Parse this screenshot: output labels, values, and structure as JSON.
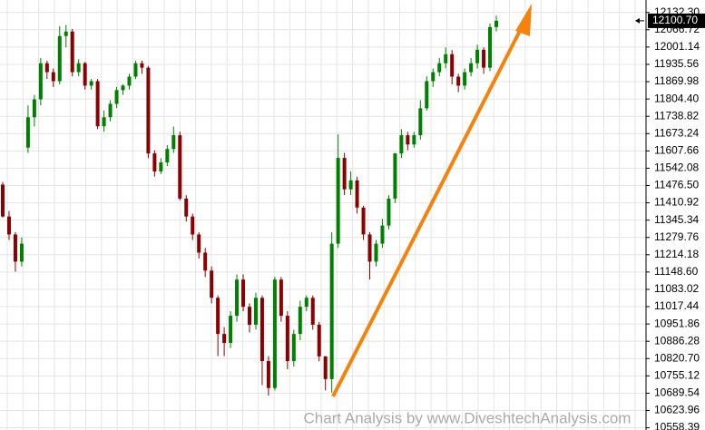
{
  "chart_data": {
    "type": "candlestick",
    "open": [
      11480,
      11359,
      11291,
      11188,
      11620,
      11735,
      11803,
      11940,
      11906,
      11872,
      12043,
      12060,
      11906,
      11940,
      11855,
      11872,
      11701,
      11735,
      11786,
      11838,
      11855,
      11889,
      11940,
      11923,
      11598,
      11530,
      11564,
      11615,
      11667,
      11427,
      11359,
      11291,
      11222,
      11154,
      11051,
      10914,
      10880,
      10983,
      11120,
      11017,
      10949,
      11051,
      10811,
      10709,
      11120,
      10983,
      10811,
      10914,
      11017,
      11051,
      10949,
      10829,
      10743,
      11256,
      11581,
      11462,
      11496,
      11393,
      11291,
      11188,
      11256,
      11325,
      11427,
      11598,
      11667,
      11632,
      11667,
      11769,
      11872,
      11906,
      11940,
      11974,
      11889,
      11855,
      11906,
      11940,
      11991,
      11923,
      12077
    ],
    "high": [
      11490,
      11380,
      11300,
      11280,
      11780,
      11820,
      11960,
      11950,
      11920,
      12080,
      12085,
      12070,
      11955,
      11945,
      11880,
      11880,
      11760,
      11800,
      11850,
      11860,
      11900,
      11950,
      11950,
      11930,
      11610,
      11580,
      11630,
      11700,
      11680,
      11440,
      11370,
      11300,
      11240,
      11170,
      11060,
      10940,
      11000,
      11140,
      11140,
      11030,
      11070,
      11060,
      10830,
      11130,
      11130,
      11000,
      10930,
      11040,
      11060,
      11060,
      10960,
      10830,
      11300,
      11670,
      11600,
      11530,
      11510,
      11400,
      11300,
      11270,
      11350,
      11440,
      11600,
      11690,
      11680,
      11680,
      11800,
      11890,
      11920,
      11960,
      12000,
      11990,
      11900,
      11920,
      11960,
      12010,
      12000,
      12090,
      12120
    ],
    "low": [
      11355,
      11270,
      11150,
      11170,
      11600,
      11700,
      11780,
      11880,
      11850,
      11860,
      12000,
      11890,
      11890,
      11840,
      11840,
      11690,
      11680,
      11720,
      11770,
      11820,
      11840,
      11880,
      11900,
      11580,
      11510,
      11520,
      11550,
      11600,
      11420,
      11340,
      11270,
      11200,
      11130,
      11030,
      10830,
      10830,
      10860,
      10960,
      11000,
      10920,
      10930,
      10720,
      10680,
      10700,
      10960,
      10780,
      10790,
      10890,
      11000,
      10930,
      10810,
      10700,
      10692,
      11240,
      11440,
      11440,
      11370,
      11270,
      11120,
      11170,
      11240,
      11310,
      11410,
      11580,
      11610,
      11620,
      11650,
      11760,
      11850,
      11890,
      11920,
      11860,
      11830,
      11840,
      11890,
      11920,
      11900,
      11910,
      12060
    ],
    "close": [
      11359,
      11291,
      11188,
      11256,
      11735,
      11803,
      11940,
      11906,
      11872,
      12043,
      12060,
      11906,
      11940,
      11855,
      11872,
      11701,
      11735,
      11786,
      11838,
      11855,
      11889,
      11940,
      11923,
      11598,
      11530,
      11564,
      11615,
      11667,
      11427,
      11359,
      11291,
      11222,
      11154,
      11051,
      10914,
      10880,
      10983,
      11120,
      11017,
      10949,
      11051,
      10811,
      10709,
      11120,
      10983,
      10811,
      10914,
      11017,
      11051,
      10949,
      10829,
      10743,
      11256,
      11581,
      11462,
      11496,
      11393,
      11291,
      11188,
      11256,
      11325,
      11427,
      11598,
      11667,
      11632,
      11667,
      11769,
      11872,
      11906,
      11940,
      11974,
      11889,
      11855,
      11906,
      11940,
      11991,
      11923,
      12077,
      12100.7
    ],
    "up_color": "#008000",
    "down_color": "#8b0000",
    "ylim": [
      10550,
      12179.5
    ],
    "yticks": [
      {
        "value": 12132.3,
        "label": "12132.30"
      },
      {
        "value": 12066.72,
        "label": "12066.72"
      },
      {
        "value": 12001.14,
        "label": "12001.14"
      },
      {
        "value": 11935.56,
        "label": "11935.56"
      },
      {
        "value": 11869.98,
        "label": "11869.98"
      },
      {
        "value": 11804.4,
        "label": "11804.40"
      },
      {
        "value": 11738.82,
        "label": "11738.82"
      },
      {
        "value": 11673.24,
        "label": "11673.24"
      },
      {
        "value": 11607.66,
        "label": "11607.66"
      },
      {
        "value": 11542.08,
        "label": "11542.08"
      },
      {
        "value": 11476.5,
        "label": "11476.50"
      },
      {
        "value": 11410.92,
        "label": "11410.92"
      },
      {
        "value": 11345.34,
        "label": "11345.34"
      },
      {
        "value": 11279.76,
        "label": "11279.76"
      },
      {
        "value": 11214.18,
        "label": "11214.18"
      },
      {
        "value": 11148.6,
        "label": "11148.60"
      },
      {
        "value": 11083.02,
        "label": "11083.02"
      },
      {
        "value": 11017.44,
        "label": "11017.44"
      },
      {
        "value": 10951.86,
        "label": "10951.86"
      },
      {
        "value": 10886.28,
        "label": "10886.28"
      },
      {
        "value": 10820.7,
        "label": "10820.70"
      },
      {
        "value": 10755.12,
        "label": "10755.12"
      },
      {
        "value": 10689.54,
        "label": "10689.54"
      },
      {
        "value": 10623.96,
        "label": "10623.96"
      },
      {
        "value": 10558.39,
        "label": "10558.39"
      }
    ],
    "grid": true,
    "last_price": {
      "value": 12100.7,
      "label": "12100.70"
    },
    "watermark": "Chart Analysis by www.DiveshtechAnalysis.com"
  }
}
